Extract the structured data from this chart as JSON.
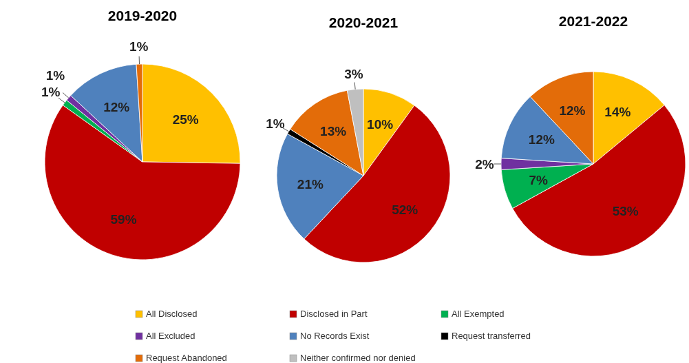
{
  "chart_data": [
    {
      "type": "pie",
      "title": "2019-2020",
      "legend": "bottom",
      "categories": [
        "All Disclosed",
        "Disclosed in Part",
        "All Exempted",
        "All Excluded",
        "No Records Exist",
        "Request transferred",
        "Request Abandoned",
        "Neither confirmed nor denied"
      ],
      "values": [
        25,
        59,
        1,
        1,
        12,
        0,
        1,
        0
      ],
      "value_labels": [
        "25%",
        "59%",
        "1%",
        "1%",
        "12%",
        null,
        "1%",
        null
      ],
      "colors": [
        "#ffc000",
        "#c00000",
        "#00b050",
        "#7030a0",
        "#4f81bd",
        "#000000",
        "#e36c09",
        "#bfbfbf"
      ]
    },
    {
      "type": "pie",
      "title": "2020-2021",
      "categories": [
        null,
        null,
        null,
        null,
        null,
        null
      ],
      "values": [
        10,
        52,
        21,
        1,
        13,
        3
      ],
      "value_labels": [
        "10%",
        "52%",
        "21%",
        "1%",
        "13%",
        "3%"
      ],
      "colors": [
        "#ffc000",
        "#c00000",
        "#4f81bd",
        "#000000",
        "#e36c09",
        "#bfbfbf"
      ]
    },
    {
      "type": "pie",
      "title": "2021-2022",
      "categories": [
        null,
        null,
        null,
        null,
        null,
        null
      ],
      "values": [
        14,
        53,
        7,
        2,
        12,
        12
      ],
      "value_labels": [
        "14%",
        "53%",
        "7%",
        "2%",
        "12%",
        "12%"
      ],
      "colors": [
        "#ffc000",
        "#c00000",
        "#00b050",
        "#7030a0",
        "#4f81bd",
        "#e36c09"
      ]
    }
  ]
}
